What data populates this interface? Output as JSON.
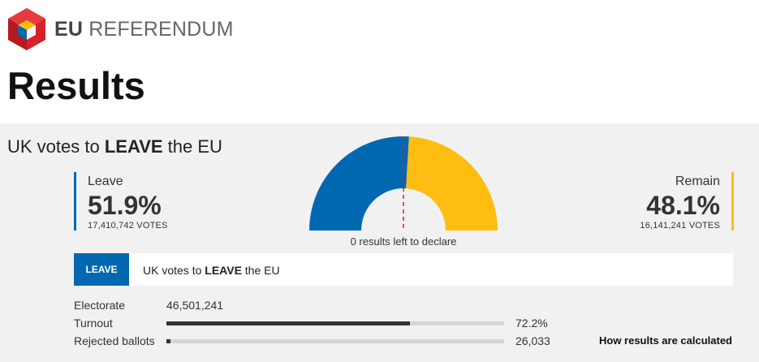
{
  "brand": {
    "eu": "EU",
    "referendum": "REFERENDUM",
    "logo_icon": "eu-referendum-cube-logo"
  },
  "page": {
    "title": "Results"
  },
  "headline": {
    "prefix": "UK votes to ",
    "emphasis": "LEAVE",
    "suffix": " the EU"
  },
  "leave": {
    "name": "Leave",
    "percent": "51.9%",
    "votes": "17,410,742 VOTES",
    "share": 0.519,
    "color": "#0068b0"
  },
  "remain": {
    "name": "Remain",
    "percent": "48.1%",
    "votes": "16,141,241 VOTES",
    "share": 0.481,
    "color": "#ffbd11"
  },
  "gauge": {
    "declare_text": "0 results left to declare"
  },
  "strip": {
    "badge": "LEAVE",
    "prefix": "UK votes to ",
    "emphasis": "LEAVE",
    "suffix": " the EU"
  },
  "stats": {
    "electorate": {
      "label": "Electorate",
      "value": "46,501,241"
    },
    "turnout": {
      "label": "Turnout",
      "value": "72.2%",
      "fraction": 0.722
    },
    "rejected": {
      "label": "Rejected ballots",
      "value": "26,033",
      "fraction": 0.012
    }
  },
  "link": {
    "label": "How results are calculated"
  }
}
